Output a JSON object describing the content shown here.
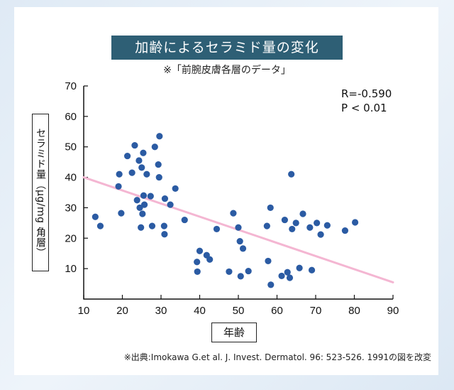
{
  "chart_data": {
    "type": "scatter",
    "title": "加齢によるセラミド量の変化",
    "subtitle": "※「前腕皮膚各層のデータ」",
    "xlabel": "年齢",
    "ylabel": "セラミド量（μg/mg 角層）",
    "xlim": [
      10,
      90
    ],
    "ylim": [
      0,
      70
    ],
    "xticks": [
      10,
      20,
      30,
      40,
      50,
      60,
      70,
      80,
      90
    ],
    "yticks": [
      10,
      20,
      30,
      40,
      50,
      60,
      70
    ],
    "grid": false,
    "annotations": [
      "R=-0.590",
      "P < 0.01"
    ],
    "point_color": "#2b5ba3",
    "trend_color": "#f4b6d2",
    "trendline": {
      "x": [
        10,
        90
      ],
      "y": [
        40,
        5.5
      ]
    },
    "points": [
      {
        "x": 13,
        "y": 27
      },
      {
        "x": 14.3,
        "y": 24
      },
      {
        "x": 19.2,
        "y": 41
      },
      {
        "x": 19,
        "y": 37
      },
      {
        "x": 19.7,
        "y": 28.2
      },
      {
        "x": 21.3,
        "y": 47
      },
      {
        "x": 22.5,
        "y": 41.5
      },
      {
        "x": 23.2,
        "y": 50.5
      },
      {
        "x": 23.8,
        "y": 32.5
      },
      {
        "x": 24.3,
        "y": 45.5
      },
      {
        "x": 24.5,
        "y": 30
      },
      {
        "x": 24.8,
        "y": 23.5
      },
      {
        "x": 25,
        "y": 43.2
      },
      {
        "x": 25.2,
        "y": 28
      },
      {
        "x": 25.4,
        "y": 48
      },
      {
        "x": 25.5,
        "y": 34
      },
      {
        "x": 25.7,
        "y": 31
      },
      {
        "x": 26.3,
        "y": 41
      },
      {
        "x": 27.3,
        "y": 33.8
      },
      {
        "x": 27.7,
        "y": 24
      },
      {
        "x": 28.4,
        "y": 50
      },
      {
        "x": 29.3,
        "y": 44.2
      },
      {
        "x": 29.5,
        "y": 40
      },
      {
        "x": 29.6,
        "y": 53.5
      },
      {
        "x": 30.8,
        "y": 24
      },
      {
        "x": 30.9,
        "y": 21.3
      },
      {
        "x": 31,
        "y": 33
      },
      {
        "x": 32.4,
        "y": 31
      },
      {
        "x": 33.7,
        "y": 36.3
      },
      {
        "x": 36.1,
        "y": 26
      },
      {
        "x": 39.3,
        "y": 12.2
      },
      {
        "x": 39.4,
        "y": 9
      },
      {
        "x": 40,
        "y": 15.8
      },
      {
        "x": 41.8,
        "y": 14.4
      },
      {
        "x": 42.6,
        "y": 13
      },
      {
        "x": 44.4,
        "y": 23
      },
      {
        "x": 47.6,
        "y": 9
      },
      {
        "x": 48.7,
        "y": 28.2
      },
      {
        "x": 50,
        "y": 23.5
      },
      {
        "x": 50.4,
        "y": 19
      },
      {
        "x": 51.2,
        "y": 16.6
      },
      {
        "x": 50.6,
        "y": 7.5
      },
      {
        "x": 52.6,
        "y": 9.2
      },
      {
        "x": 57.4,
        "y": 24
      },
      {
        "x": 57.7,
        "y": 12.5
      },
      {
        "x": 58.3,
        "y": 30
      },
      {
        "x": 58.4,
        "y": 4.7
      },
      {
        "x": 61.2,
        "y": 7.6
      },
      {
        "x": 62,
        "y": 26
      },
      {
        "x": 62.7,
        "y": 8.8
      },
      {
        "x": 63.3,
        "y": 7
      },
      {
        "x": 63.7,
        "y": 41
      },
      {
        "x": 63.9,
        "y": 23
      },
      {
        "x": 64.9,
        "y": 25
      },
      {
        "x": 65.8,
        "y": 10.2
      },
      {
        "x": 66.7,
        "y": 28
      },
      {
        "x": 68.5,
        "y": 23.5
      },
      {
        "x": 69,
        "y": 9.5
      },
      {
        "x": 70.3,
        "y": 25
      },
      {
        "x": 71.3,
        "y": 21.2
      },
      {
        "x": 73,
        "y": 24.2
      },
      {
        "x": 77.6,
        "y": 22.5
      },
      {
        "x": 80.2,
        "y": 25.2
      }
    ]
  },
  "source_note": "※出典:Imokawa G.et al. J. Invest. Dermatol. 96: 523-526. 1991の図を改変"
}
